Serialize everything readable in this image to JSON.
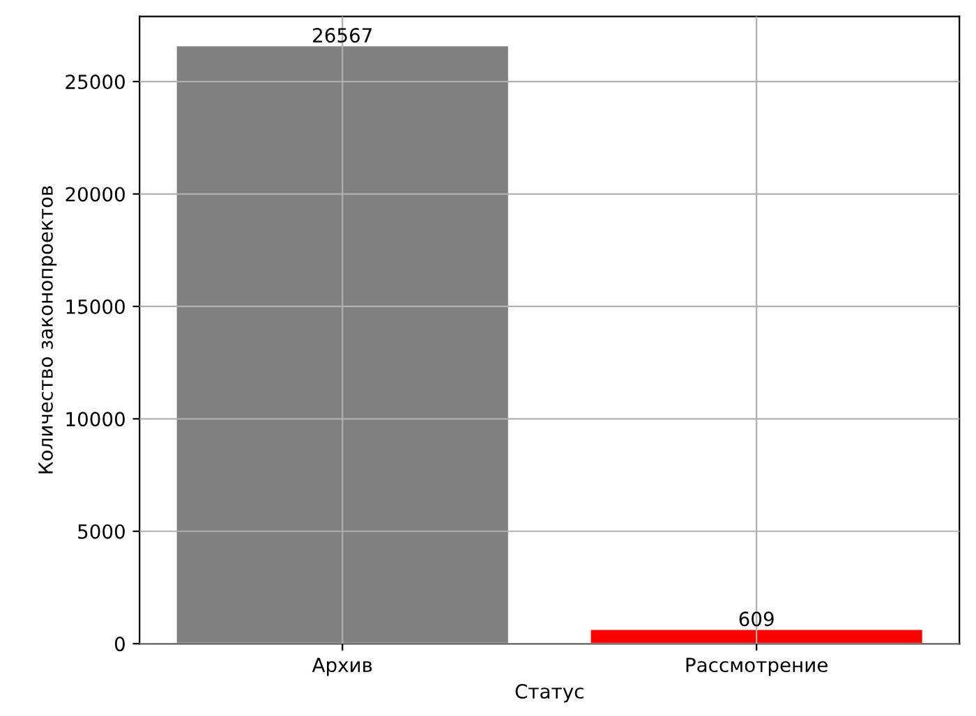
{
  "chart_data": {
    "type": "bar",
    "xlabel": "Статус",
    "ylabel": "Количество законопроектов",
    "categories": [
      "Архив",
      "Рассмотрение"
    ],
    "values": [
      26567,
      609
    ],
    "colors": [
      "#808080",
      "#ff0000"
    ],
    "ylim": [
      0,
      27895
    ],
    "yticks": [
      0,
      5000,
      10000,
      15000,
      20000,
      25000
    ],
    "grid": true,
    "data_labels": true
  }
}
